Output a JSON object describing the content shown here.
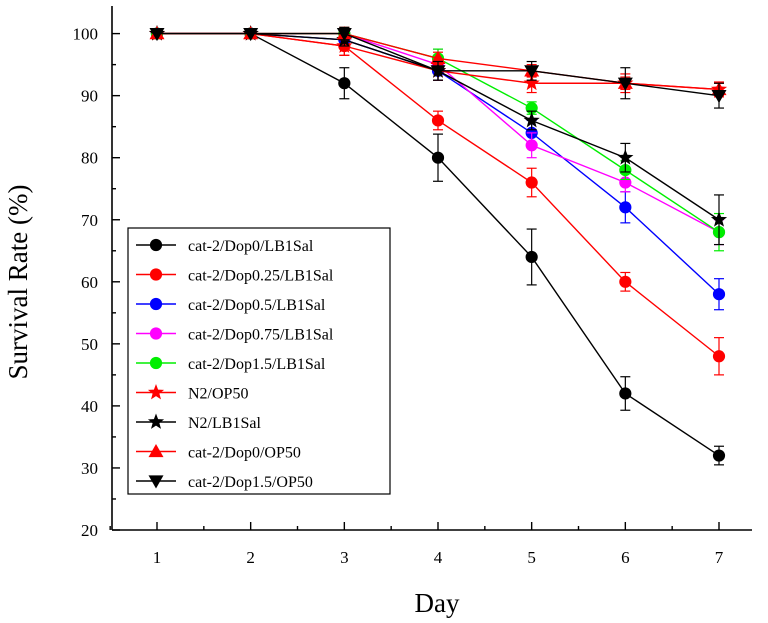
{
  "chart_data": {
    "type": "line",
    "xlabel": "Day",
    "ylabel": "Survival Rate (%)",
    "x": [
      1,
      2,
      3,
      4,
      5,
      6,
      7
    ],
    "xlim": [
      0.4,
      7.2
    ],
    "ylim": [
      20,
      105
    ],
    "xticks": [
      1,
      2,
      3,
      4,
      5,
      6,
      7
    ],
    "yticks": [
      20,
      30,
      40,
      50,
      60,
      70,
      80,
      90,
      100
    ],
    "legend_position": "bottom-left",
    "series": [
      {
        "name": "cat-2/Dop0/LB1Sal",
        "color": "#000000",
        "marker": "circle",
        "values": [
          100,
          100,
          92,
          80,
          64,
          42,
          32
        ],
        "errors": [
          0,
          0,
          2.5,
          3.8,
          4.5,
          2.7,
          1.5
        ]
      },
      {
        "name": "cat-2/Dop0.25/LB1Sal",
        "color": "#ff0000",
        "marker": "circle",
        "values": [
          100,
          100,
          98,
          86,
          76,
          60,
          48
        ],
        "errors": [
          0,
          0,
          1.5,
          1.5,
          2.3,
          1.5,
          3.0
        ]
      },
      {
        "name": "cat-2/Dop0.5/LB1Sal",
        "color": "#0000ff",
        "marker": "circle",
        "values": [
          100,
          100,
          99,
          94,
          84,
          72,
          58
        ],
        "errors": [
          0,
          0,
          1.0,
          1.5,
          2.0,
          2.5,
          2.5
        ]
      },
      {
        "name": "cat-2/Dop0.75/LB1Sal",
        "color": "#ff00ff",
        "marker": "circle",
        "values": [
          100,
          100,
          100,
          95,
          82,
          76,
          68
        ],
        "errors": [
          0,
          0,
          1.0,
          2.5,
          2.0,
          1.5,
          2.0
        ]
      },
      {
        "name": "cat-2/Dop1.5/LB1Sal",
        "color": "#00ee00",
        "marker": "circle",
        "values": [
          100,
          100,
          100,
          96,
          88,
          78,
          68
        ],
        "errors": [
          0,
          0,
          1.0,
          1.5,
          1.0,
          1.5,
          3.0
        ]
      },
      {
        "name": "N2/OP50",
        "color": "#ff0000",
        "marker": "star",
        "values": [
          100,
          100,
          98,
          94,
          92,
          92,
          91
        ],
        "errors": [
          0,
          0,
          1.5,
          1.5,
          1.5,
          1.5,
          1.2
        ]
      },
      {
        "name": "N2/LB1Sal",
        "color": "#000000",
        "marker": "star",
        "values": [
          100,
          100,
          99,
          94,
          86,
          80,
          70
        ],
        "errors": [
          0,
          0,
          1.0,
          1.5,
          1.5,
          2.3,
          4.0
        ]
      },
      {
        "name": "cat-2/Dop0/OP50",
        "color": "#ff0000",
        "marker": "triangle-up",
        "values": [
          100,
          100,
          100,
          96,
          94,
          92,
          91
        ],
        "errors": [
          0,
          0,
          1.0,
          1.0,
          1.0,
          1.0,
          1.0
        ]
      },
      {
        "name": "cat-2/Dop1.5/OP50",
        "color": "#000000",
        "marker": "triangle-down",
        "values": [
          100,
          100,
          100,
          94,
          94,
          92,
          90
        ],
        "errors": [
          0,
          0,
          1.0,
          1.5,
          1.5,
          2.5,
          2.0
        ]
      }
    ]
  }
}
